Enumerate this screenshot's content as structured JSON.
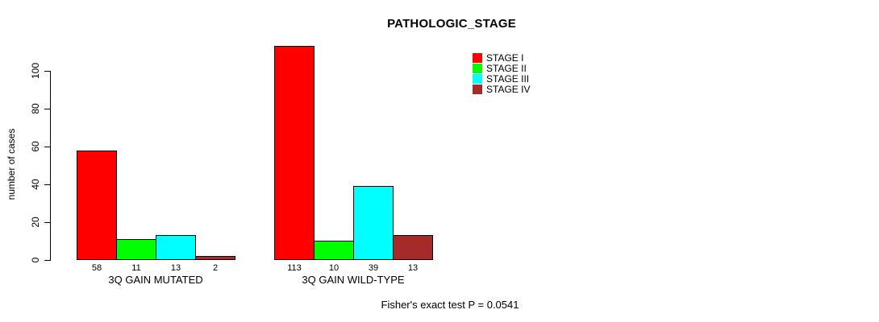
{
  "chart_data": {
    "type": "bar",
    "title": "PATHOLOGIC_STAGE",
    "ylabel": "number of cases",
    "ylim": [
      0,
      113
    ],
    "yticks": [
      0,
      20,
      40,
      60,
      80,
      100
    ],
    "categories": [
      "3Q GAIN MUTATED",
      "3Q GAIN WILD-TYPE"
    ],
    "series": [
      {
        "name": "STAGE I",
        "color": "#ff0000",
        "values": [
          58,
          113
        ]
      },
      {
        "name": "STAGE II",
        "color": "#00ff00",
        "values": [
          11,
          10
        ]
      },
      {
        "name": "STAGE III",
        "color": "#00ffff",
        "values": [
          13,
          39
        ]
      },
      {
        "name": "STAGE IV",
        "color": "#a52a2a",
        "values": [
          2,
          13
        ]
      }
    ],
    "bar_value_labels": true,
    "legend_position": "top-right",
    "grid": false,
    "annotation": "Fisher's exact test P = 0.0541"
  }
}
